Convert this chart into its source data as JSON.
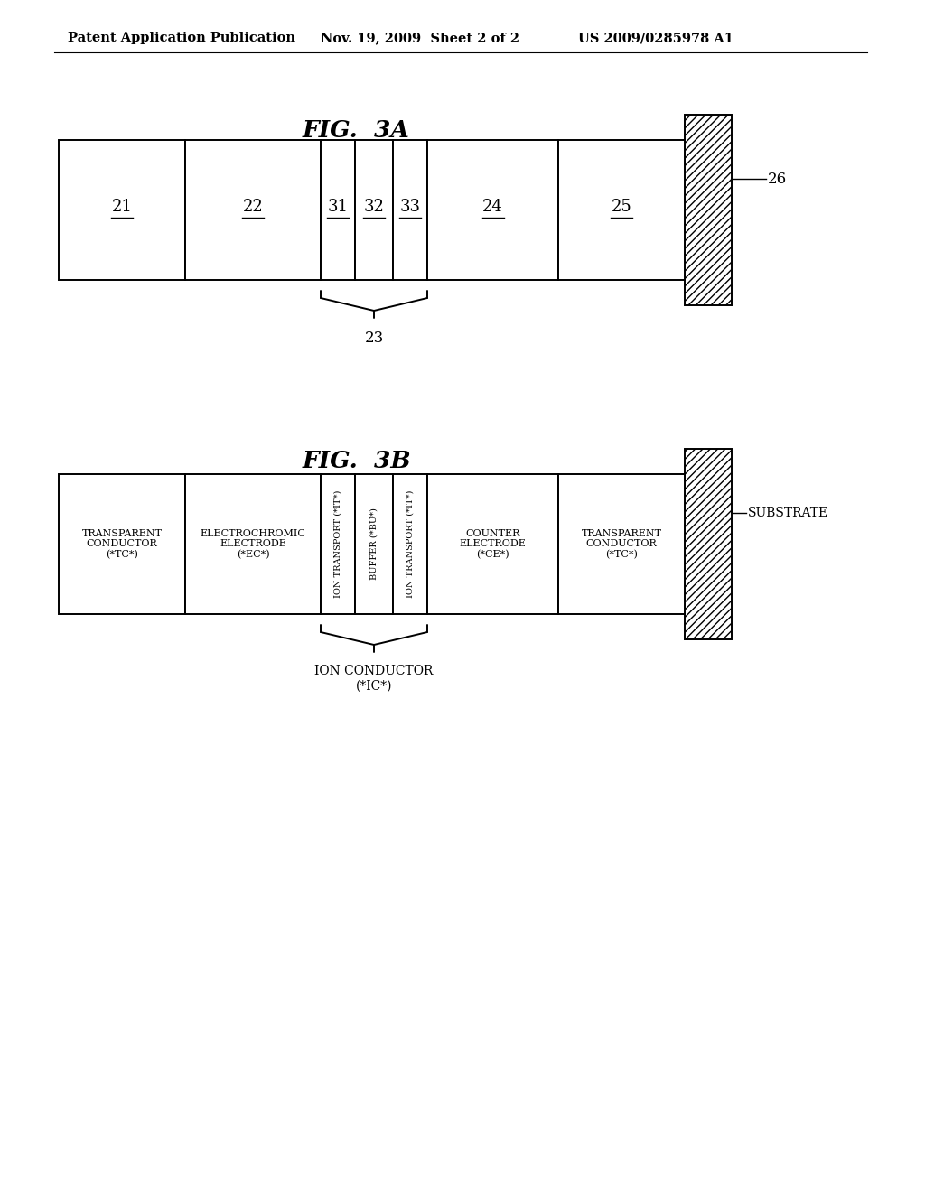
{
  "header_left": "Patent Application Publication",
  "header_mid": "Nov. 19, 2009  Sheet 2 of 2",
  "header_right": "US 2009/0285978 A1",
  "fig3a_title": "FIG.  3A",
  "fig3b_title": "FIG.  3B",
  "fig3a_labels": [
    "21",
    "22",
    "31",
    "32",
    "33",
    "24",
    "25"
  ],
  "fig3a_brace_label": "23",
  "fig3a_substrate_label": "26",
  "fig3b_cols_labels": [
    "TRANSPARENT\nCONDUCTOR\n(*TC*)",
    "ELECTROCHROMIC\nELECTRODE\n(*EC*)",
    "ION TRANSPORT (*IT*)",
    "BUFFER (*BU*)",
    "ION TRANSPORT (*IT*)",
    "COUNTER\nELECTRODE\n(*CE*)",
    "TRANSPARENT\nCONDUCTOR\n(*TC*)"
  ],
  "fig3b_cols_rotated": [
    false,
    false,
    true,
    true,
    true,
    false,
    false
  ],
  "fig3b_brace_label": "ION CONDUCTOR\n(*IC*)",
  "fig3b_substrate_label": "SUBSTRATE",
  "background_color": "#ffffff"
}
